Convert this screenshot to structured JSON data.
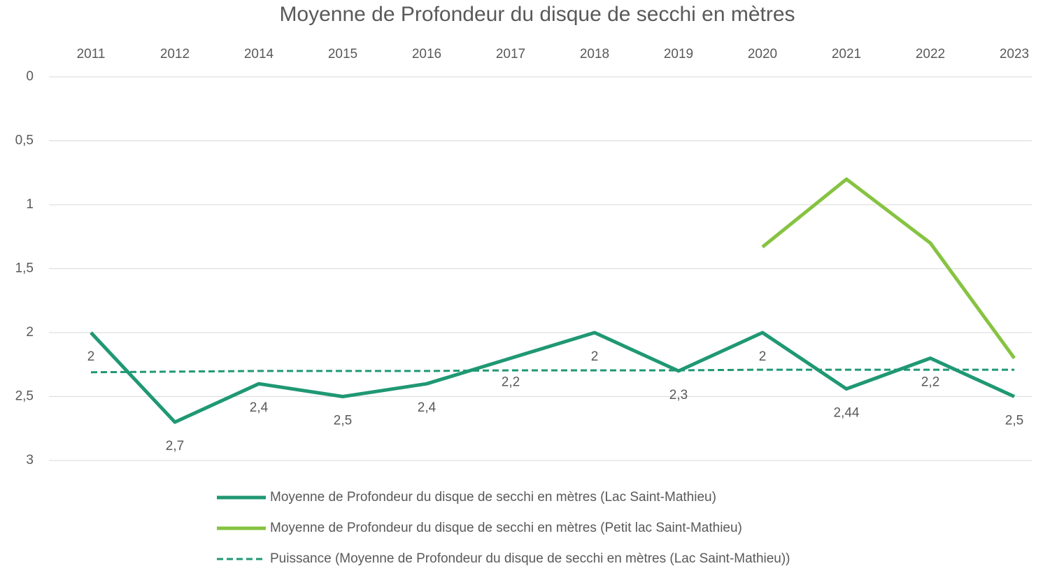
{
  "chart_data": {
    "type": "line",
    "title": "Moyenne de Profondeur du disque de secchi en mètres",
    "categories": [
      "2011",
      "2012",
      "2014",
      "2015",
      "2016",
      "2017",
      "2018",
      "2019",
      "2020",
      "2021",
      "2022",
      "2023"
    ],
    "series": [
      {
        "name": "Moyenne de Profondeur du disque de secchi en mètres (Lac Saint-Mathieu)",
        "color": "#1f9873",
        "line_style": "solid",
        "values": [
          2,
          2.7,
          2.4,
          2.5,
          2.4,
          2.2,
          2,
          2.3,
          2,
          2.44,
          2.2,
          2.5
        ],
        "value_labels": [
          "2",
          "2,7",
          "2,4",
          "2,5",
          "2,4",
          "2,2",
          "2",
          "2,3",
          "2",
          "2,44",
          "2,2",
          "2,5"
        ]
      },
      {
        "name": "Moyenne de Profondeur du disque de secchi en mètres (Petit lac Saint-Mathieu)",
        "color": "#86c342",
        "line_style": "solid",
        "values": [
          null,
          null,
          null,
          null,
          null,
          null,
          null,
          null,
          1.33,
          0.8,
          1.3,
          2.2
        ]
      },
      {
        "name": "Puissance (Moyenne de Profondeur du disque de secchi en mètres (Lac Saint-Mathieu))",
        "color": "#1f9873",
        "line_style": "dashed",
        "values": [
          2.31,
          2.305,
          2.3,
          2.3,
          2.3,
          2.295,
          2.295,
          2.295,
          2.29,
          2.29,
          2.29,
          2.29
        ]
      }
    ],
    "ylim": [
      0,
      3
    ],
    "y_reversed": true,
    "yticks": [
      0,
      {
        "value": 0.5,
        "label": "0,5"
      },
      1,
      {
        "value": 1.5,
        "label": "1,5"
      },
      2,
      {
        "value": 2.5,
        "label": "2,5"
      },
      3
    ],
    "grid": true,
    "legend": "bottom"
  }
}
